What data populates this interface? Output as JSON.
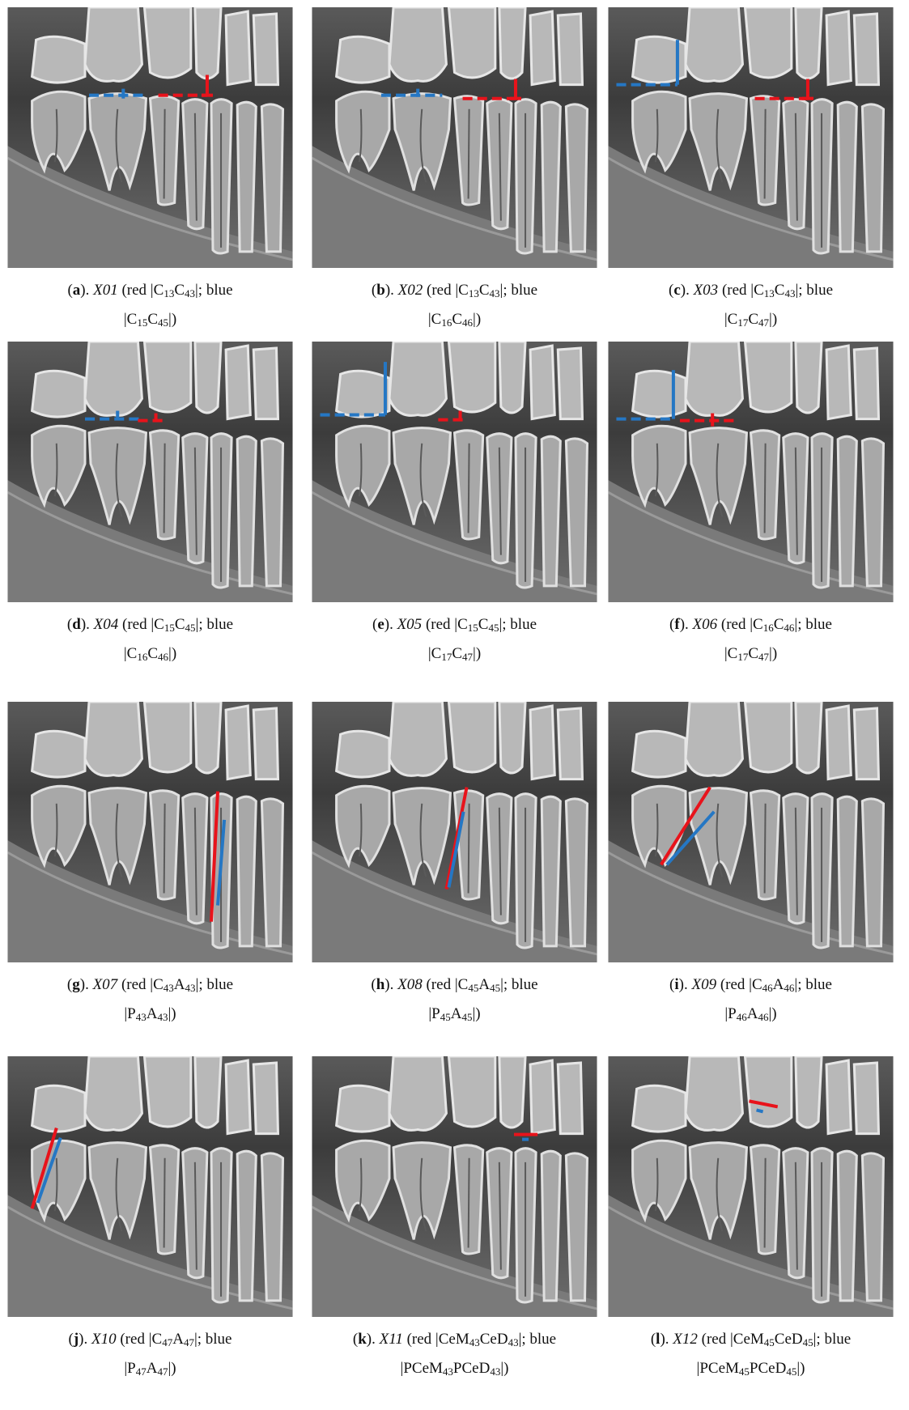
{
  "format": {
    "open": "(",
    "close_letter": ").",
    "red_open": " (red |",
    "blue_word": "|; blue",
    "bar": "|",
    "end": "|)"
  },
  "panels": [
    {
      "letter": "a",
      "code": "X01",
      "red": [
        "C",
        "13",
        "C",
        "43"
      ],
      "blue": [
        "C",
        "15",
        "C",
        "45"
      ]
    },
    {
      "letter": "b",
      "code": "X02",
      "red": [
        "C",
        "13",
        "C",
        "43"
      ],
      "blue": [
        "C",
        "16",
        "C",
        "46"
      ]
    },
    {
      "letter": "c",
      "code": "X03",
      "red": [
        "C",
        "13",
        "C",
        "43"
      ],
      "blue": [
        "C",
        "17",
        "C",
        "47"
      ]
    },
    {
      "letter": "d",
      "code": "X04",
      "red": [
        "C",
        "15",
        "C",
        "45"
      ],
      "blue": [
        "C",
        "16",
        "C",
        "46"
      ]
    },
    {
      "letter": "e",
      "code": "X05",
      "red": [
        "C",
        "15",
        "C",
        "45"
      ],
      "blue": [
        "C",
        "17",
        "C",
        "47"
      ]
    },
    {
      "letter": "f",
      "code": "X06",
      "red": [
        "C",
        "16",
        "C",
        "46"
      ],
      "blue": [
        "C",
        "17",
        "C",
        "47"
      ]
    },
    {
      "letter": "g",
      "code": "X07",
      "red": [
        "C",
        "43",
        "A",
        "43"
      ],
      "blue": [
        "P",
        "43",
        "A",
        "43"
      ]
    },
    {
      "letter": "h",
      "code": "X08",
      "red": [
        "C",
        "45",
        "A",
        "45"
      ],
      "blue": [
        "P",
        "45",
        "A",
        "45"
      ]
    },
    {
      "letter": "i",
      "code": "X09",
      "red": [
        "C",
        "46",
        "A",
        "46"
      ],
      "blue": [
        "P",
        "46",
        "A",
        "46"
      ]
    },
    {
      "letter": "j",
      "code": "X10",
      "red": [
        "C",
        "47",
        "A",
        "47"
      ],
      "blue": [
        "P",
        "47",
        "A",
        "47"
      ]
    },
    {
      "letter": "k",
      "code": "X11",
      "red": [
        "CeM",
        "43",
        "CeD",
        "43"
      ],
      "blue": [
        "PCeM",
        "43",
        "PCeD",
        "43"
      ]
    },
    {
      "letter": "l",
      "code": "X12",
      "red": [
        "CeM",
        "45",
        "CeD",
        "45"
      ],
      "blue": [
        "PCeM",
        "45",
        "PCeD",
        "45"
      ]
    }
  ]
}
